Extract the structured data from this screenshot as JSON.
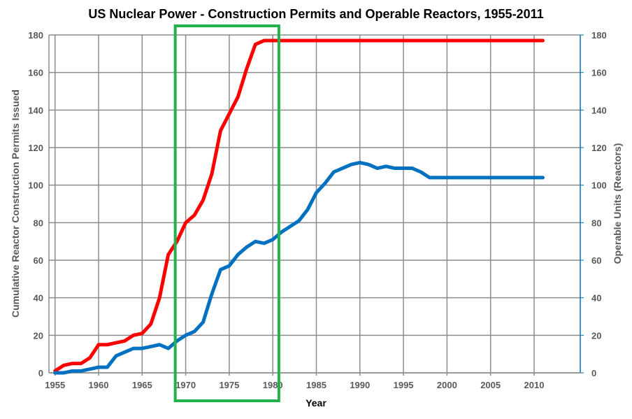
{
  "chart_data": {
    "type": "line",
    "title": "US Nuclear Power - Construction Permits and Operable Reactors, 1955-2011",
    "xlabel": "Year",
    "ylabel_left": "Cumulative Reactor Construction Permits Issued",
    "ylabel_right": "Operable Units (Reactors)",
    "xlim": [
      1954.3,
      2015.3
    ],
    "ylim": [
      0,
      180
    ],
    "x_ticks": [
      1955,
      1960,
      1965,
      1970,
      1975,
      1980,
      1985,
      1990,
      1995,
      2000,
      2005,
      2010
    ],
    "y_ticks": [
      0,
      20,
      40,
      60,
      80,
      100,
      120,
      140,
      160,
      180
    ],
    "grid": true,
    "highlight": {
      "x_range": [
        1968.8,
        1980.7
      ],
      "color": "#22b14c"
    },
    "series": [
      {
        "axis": "left",
        "color": "#ff0000",
        "x": [
          1955,
          1956,
          1957,
          1958,
          1959,
          1960,
          1961,
          1962,
          1963,
          1964,
          1965,
          1966,
          1967,
          1968,
          1969,
          1970,
          1971,
          1972,
          1973,
          1974,
          1975,
          1976,
          1977,
          1978,
          1979,
          1980,
          1985,
          1990,
          1995,
          2000,
          2005,
          2011
        ],
        "values": [
          1,
          4,
          5,
          5,
          8,
          15,
          15,
          16,
          17,
          20,
          21,
          26,
          40,
          63,
          70,
          80,
          84,
          92,
          106,
          129,
          138,
          147,
          162,
          175,
          177,
          177,
          177,
          177,
          177,
          177,
          177,
          177
        ]
      },
      {
        "axis": "right",
        "color": "#0070c0",
        "x": [
          1955,
          1956,
          1957,
          1958,
          1959,
          1960,
          1961,
          1962,
          1963,
          1964,
          1965,
          1966,
          1967,
          1968,
          1969,
          1970,
          1971,
          1972,
          1973,
          1974,
          1975,
          1976,
          1977,
          1978,
          1979,
          1980,
          1981,
          1982,
          1983,
          1984,
          1985,
          1986,
          1987,
          1988,
          1989,
          1990,
          1991,
          1992,
          1993,
          1994,
          1995,
          1996,
          1997,
          1998,
          2000,
          2005,
          2011
        ],
        "values": [
          0,
          0,
          1,
          1,
          2,
          3,
          3,
          9,
          11,
          13,
          13,
          14,
          15,
          13,
          17,
          20,
          22,
          27,
          42,
          55,
          57,
          63,
          67,
          70,
          69,
          71,
          75,
          78,
          81,
          87,
          96,
          101,
          107,
          109,
          111,
          112,
          111,
          109,
          110,
          109,
          109,
          109,
          107,
          104,
          104,
          104,
          104
        ]
      }
    ]
  }
}
